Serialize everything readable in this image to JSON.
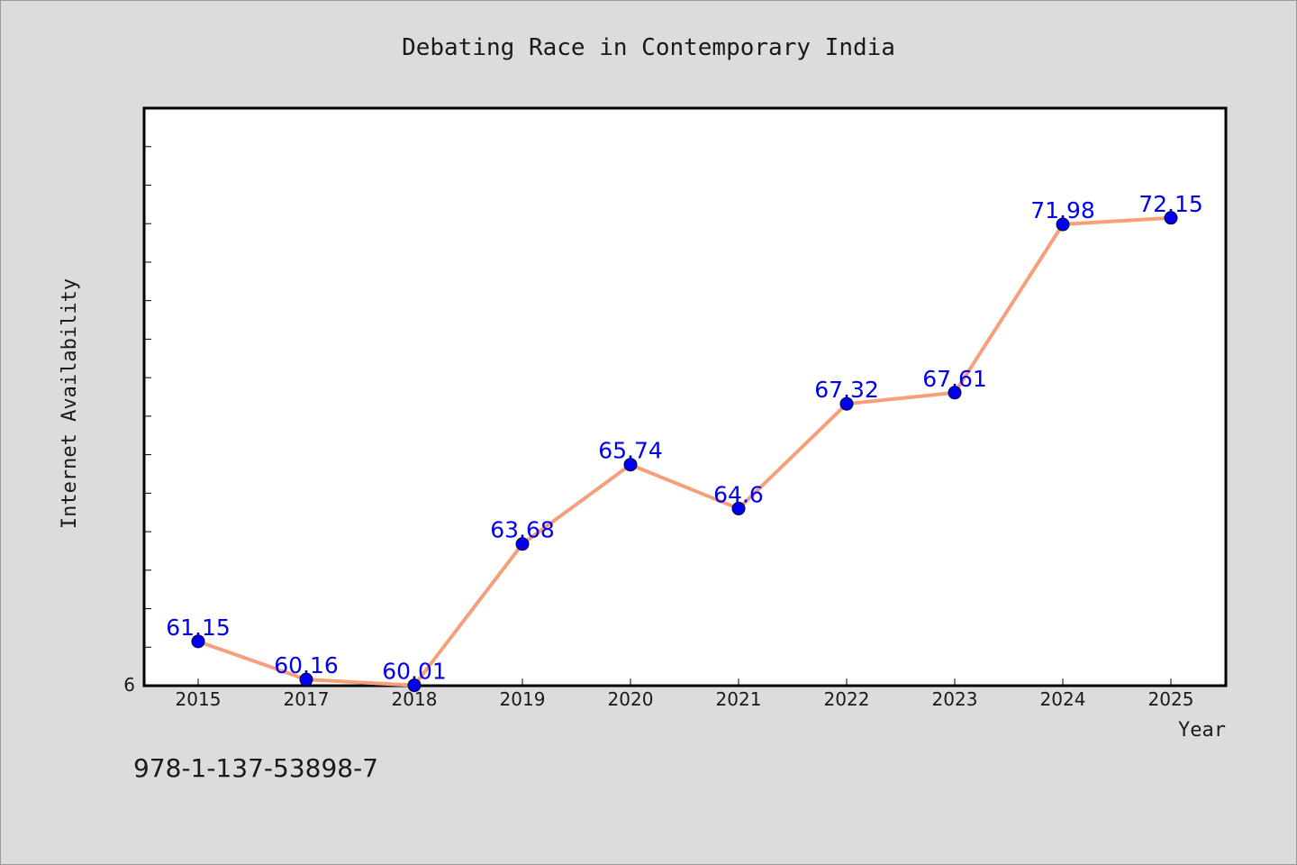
{
  "chart_data": {
    "type": "line",
    "title": "Debating Race in Contemporary India",
    "xlabel": "Year",
    "ylabel": "Internet Availability",
    "categories": [
      "2015",
      "2017",
      "2018",
      "2019",
      "2020",
      "2021",
      "2022",
      "2023",
      "2024",
      "2025"
    ],
    "series": [
      {
        "values": [
          61.15,
          60.16,
          60.01,
          63.68,
          65.74,
          64.6,
          67.32,
          67.61,
          71.98,
          72.15
        ],
        "labels": [
          "61.15",
          "60.16",
          "60.01",
          "63.68",
          "65.74",
          "64.6",
          "67.32",
          "67.61",
          "71.98",
          "72.15"
        ]
      }
    ],
    "ylim": [
      60,
      75
    ],
    "y_tick_text": "6",
    "grid": false,
    "line_color": "#f5a07a",
    "marker_color": "#0000ee",
    "label_color": "#0000ee"
  },
  "footer": {
    "isbn": "978-1-137-53898-7"
  }
}
